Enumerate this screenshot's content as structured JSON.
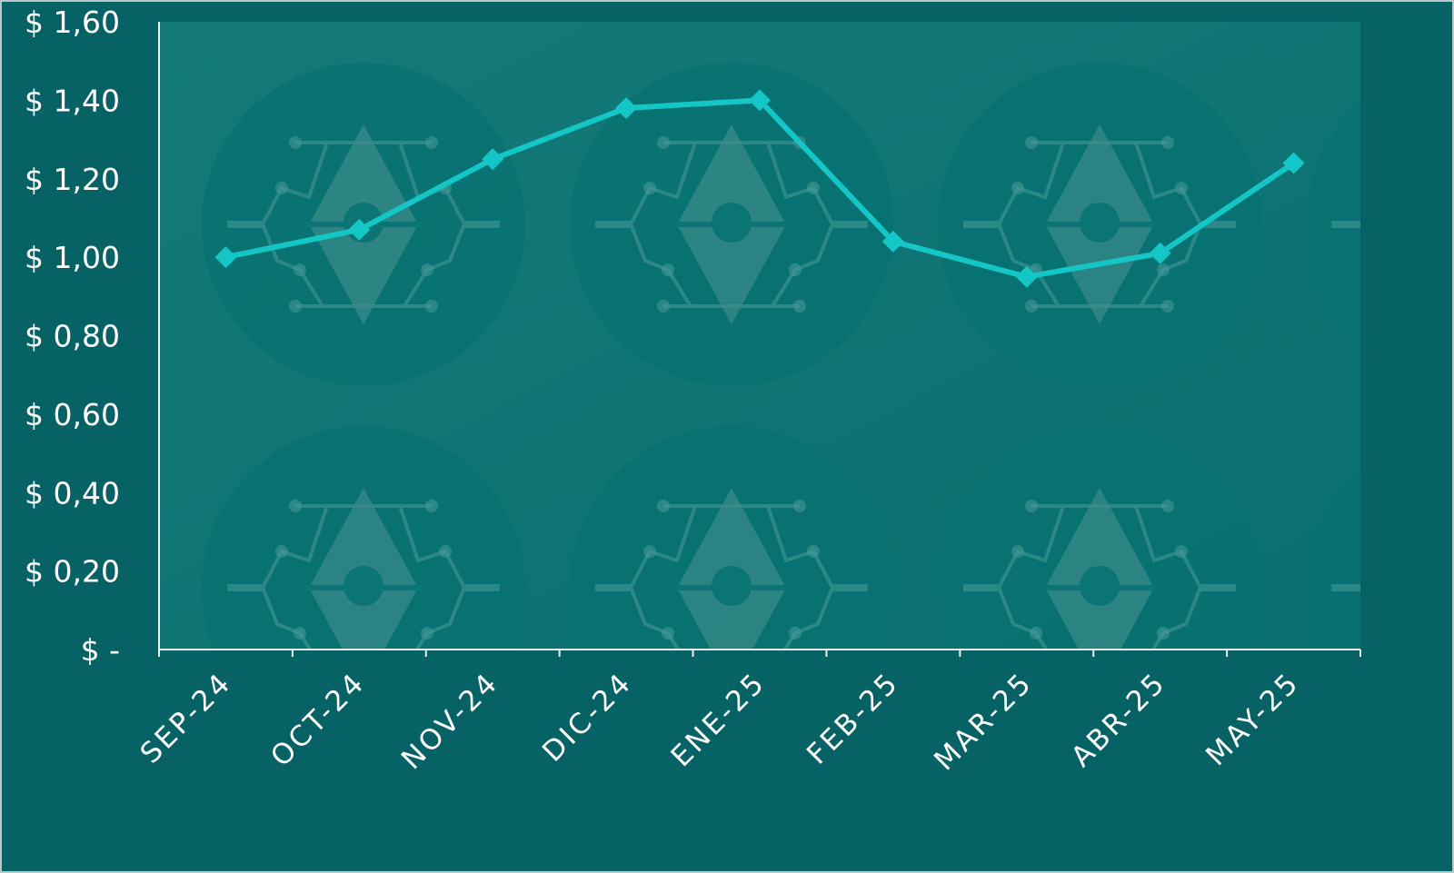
{
  "chart_data": {
    "type": "line",
    "title": "",
    "xlabel": "",
    "ylabel": "",
    "categories": [
      "SEP-24",
      "OCT-24",
      "NOV-24",
      "DIC-24",
      "ENE-25",
      "FEB-25",
      "MAR-25",
      "ABR-25",
      "MAY-25"
    ],
    "series": [
      {
        "values": [
          1.0,
          1.07,
          1.25,
          1.38,
          1.4,
          1.04,
          0.95,
          1.01,
          1.24
        ]
      }
    ],
    "ylim": [
      0,
      1.6
    ],
    "y_ticks": [
      0,
      0.2,
      0.4,
      0.6,
      0.8,
      1.0,
      1.2,
      1.4,
      1.6
    ],
    "y_tick_labels": [
      "$ -",
      "$ 0,20",
      "$ 0,40",
      "$ 0,60",
      "$ 0,80",
      "$ 1,00",
      "$ 1,20",
      "$ 1,40",
      "$ 1,60"
    ],
    "grid": false,
    "legend": "none",
    "marker": "diamond",
    "colors": {
      "line": "#14c6c6",
      "axis": "#e8f2f2",
      "text": "#ffffff",
      "plot_bg": "#0e7676",
      "outer_bg": "#066264",
      "watermark": "#2f8a8a"
    }
  }
}
